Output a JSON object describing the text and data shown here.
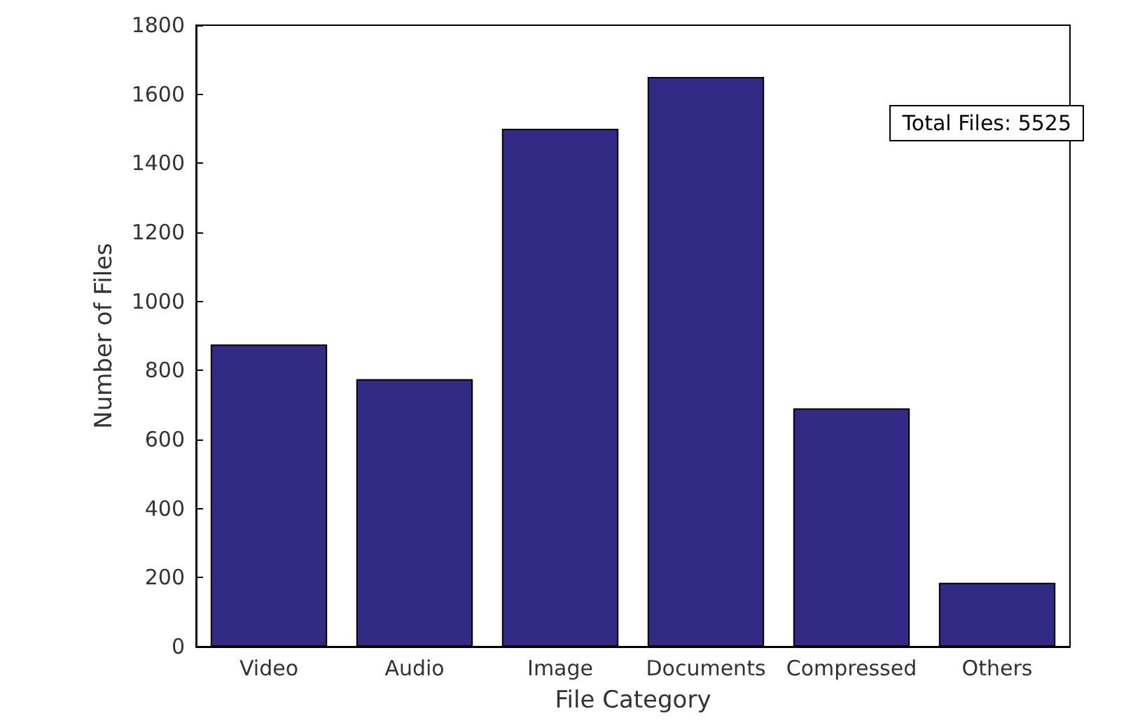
{
  "chart_data": {
    "type": "bar",
    "xlabel": "File Category",
    "ylabel": "Number of Files",
    "categories": [
      "Video",
      "Audio",
      "Image",
      "Documents",
      "Compressed",
      "Others"
    ],
    "values": [
      875,
      775,
      1500,
      1650,
      690,
      185
    ],
    "color": "#332a85",
    "ylim": [
      0,
      1800
    ],
    "yticks": [
      0,
      200,
      400,
      600,
      800,
      1000,
      1200,
      1400,
      1600,
      1800
    ],
    "grid": false,
    "annotations": [
      "Total Files: 5525"
    ]
  }
}
